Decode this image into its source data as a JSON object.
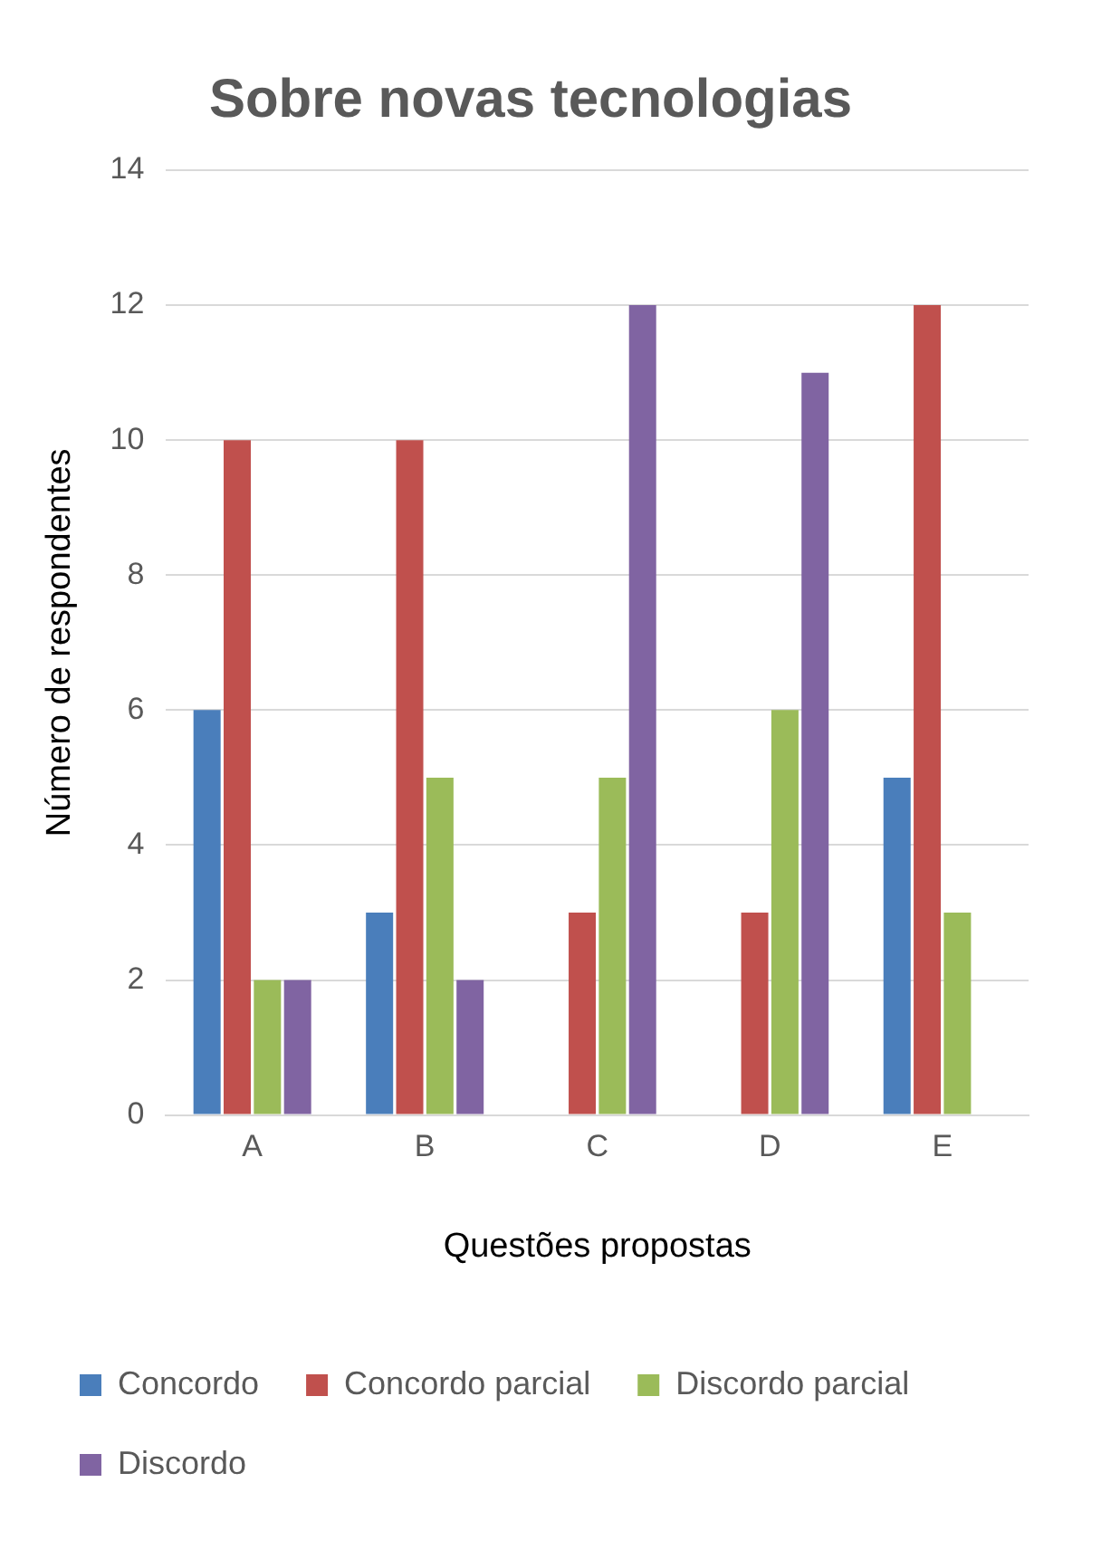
{
  "chart_data": {
    "type": "bar",
    "title": "Sobre novas tecnologias",
    "xlabel": "Questões propostas",
    "ylabel": "Número de respondentes",
    "categories": [
      "A",
      "B",
      "C",
      "D",
      "E"
    ],
    "series": [
      {
        "name": "Concordo",
        "color": "#4a7ebb",
        "values": [
          6,
          3,
          0,
          0,
          5
        ]
      },
      {
        "name": "Concordo parcial",
        "color": "#c0504d",
        "values": [
          10,
          10,
          3,
          3,
          12
        ]
      },
      {
        "name": "Discordo parcial",
        "color": "#9bbb59",
        "values": [
          2,
          5,
          5,
          6,
          3
        ]
      },
      {
        "name": "Discordo",
        "color": "#8064a2",
        "values": [
          2,
          2,
          12,
          11,
          0
        ]
      }
    ],
    "ylim": [
      0,
      14
    ],
    "yticks": [
      0,
      2,
      4,
      6,
      8,
      10,
      12,
      14
    ],
    "grid": "y",
    "legend": "bottom"
  }
}
